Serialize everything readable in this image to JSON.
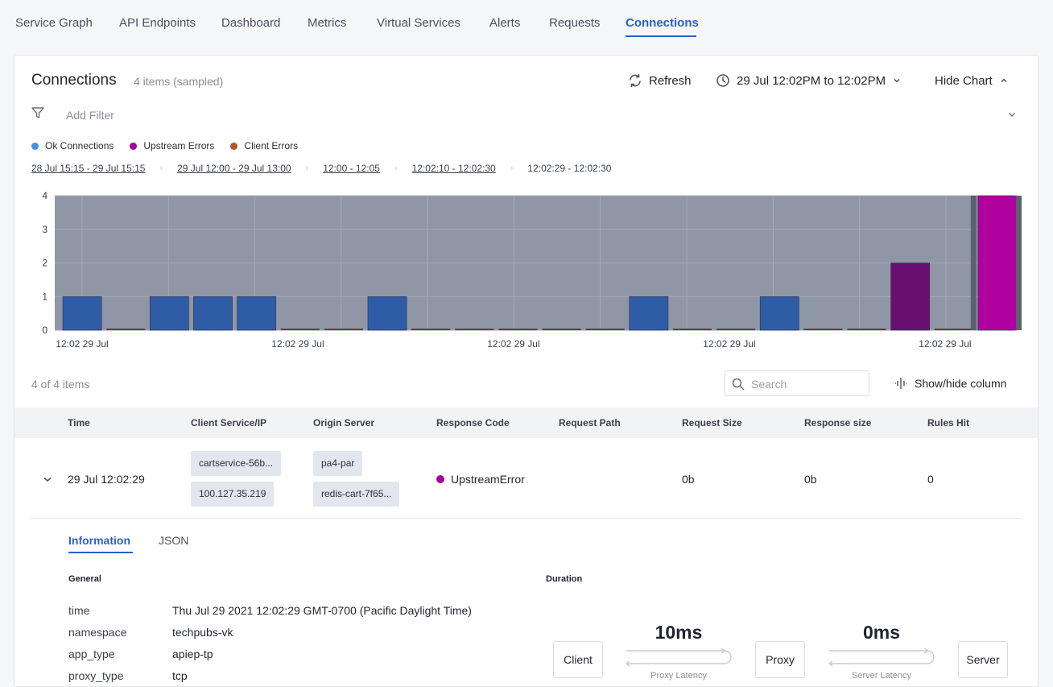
{
  "nav": {
    "tabs": [
      "Service Graph",
      "API Endpoints",
      "Dashboard",
      "Metrics",
      "Virtual Services",
      "Alerts",
      "Requests",
      "Connections"
    ],
    "active": "Connections"
  },
  "panel": {
    "title": "Connections",
    "count": "4 items (sampled)",
    "refresh_label": "Refresh",
    "time_range_label": "29 Jul 12:02PM to 12:02PM",
    "hide_chart_label": "Hide Chart"
  },
  "filter": {
    "placeholder": "Add Filter"
  },
  "legend": [
    {
      "label": "Ok Connections",
      "color": "#4a90e2"
    },
    {
      "label": "Upstream Errors",
      "color": "#a5009a"
    },
    {
      "label": "Client Errors",
      "color": "#b4562a"
    }
  ],
  "breadcrumbs": [
    "28 Jul 15:15 - 29 Jul 15:15",
    "29 Jul 12:00 - 29 Jul 13:00",
    "12:00 - 12:05",
    "12:02:10 - 12:02:30",
    "12:02:29 - 12:02:30"
  ],
  "chart_data": {
    "type": "bar",
    "ylim": [
      0,
      4
    ],
    "yticks": [
      0,
      1,
      2,
      3,
      4
    ],
    "xtick_labels": [
      "12:02 29 Jul",
      "12:02 29 Jul",
      "12:02 29 Jul",
      "12:02 29 Jul",
      "12:02 29 Jul"
    ],
    "series": [
      {
        "name": "Ok Connections",
        "color": "#2e5da6",
        "values": [
          1,
          0,
          1,
          1,
          1,
          0,
          0,
          1,
          0,
          0,
          0,
          0,
          0,
          1,
          0,
          0,
          1,
          0,
          0,
          0,
          0,
          0
        ]
      },
      {
        "name": "Upstream Errors",
        "color": "#6a1070",
        "values": [
          0,
          0,
          0,
          0,
          0,
          0,
          0,
          0,
          0,
          0,
          0,
          0,
          0,
          0,
          0,
          0,
          0,
          0,
          0,
          2,
          0,
          4
        ]
      },
      {
        "name": "Client Errors",
        "color": "#6b3a3a",
        "values": [
          0,
          0,
          0,
          0,
          0,
          0,
          0,
          0,
          0,
          0,
          0,
          0,
          0,
          0,
          0,
          0,
          0,
          0,
          0,
          0,
          0,
          0
        ]
      }
    ],
    "selected_index": 21,
    "selected_color": "#b000a0",
    "grid": true
  },
  "table": {
    "count_label": "4 of 4 items",
    "search_placeholder": "Search",
    "showhide_label": "Show/hide column",
    "headers": [
      "Time",
      "Client Service/IP",
      "Origin Server",
      "Response Code",
      "Request Path",
      "Request Size",
      "Response size",
      "Rules Hit"
    ],
    "row": {
      "time": "29 Jul 12:02:29",
      "client_service": "cartservice-56b...",
      "client_ip": "100.127.35.219",
      "origin_pop": "pa4-par",
      "origin_server": "redis-cart-7f65...",
      "response_code": "UpstreamError",
      "request_path": "",
      "request_size": "0b",
      "response_size": "0b",
      "rules_hit": "0"
    }
  },
  "detail": {
    "tabs": [
      "Information",
      "JSON"
    ],
    "general_title": "General",
    "duration_title": "Duration",
    "fields": [
      {
        "key": "time",
        "value": "Thu Jul 29 2021 12:02:29 GMT-0700 (Pacific Daylight Time)"
      },
      {
        "key": "namespace",
        "value": "techpubs-vk"
      },
      {
        "key": "app_type",
        "value": "apiep-tp"
      },
      {
        "key": "proxy_type",
        "value": "tcp"
      }
    ],
    "duration": {
      "client": "Client",
      "proxy": "Proxy",
      "server": "Server",
      "proxy_latency_value": "10ms",
      "proxy_latency_label": "Proxy Latency",
      "server_latency_value": "0ms",
      "server_latency_label": "Server Latency"
    }
  }
}
